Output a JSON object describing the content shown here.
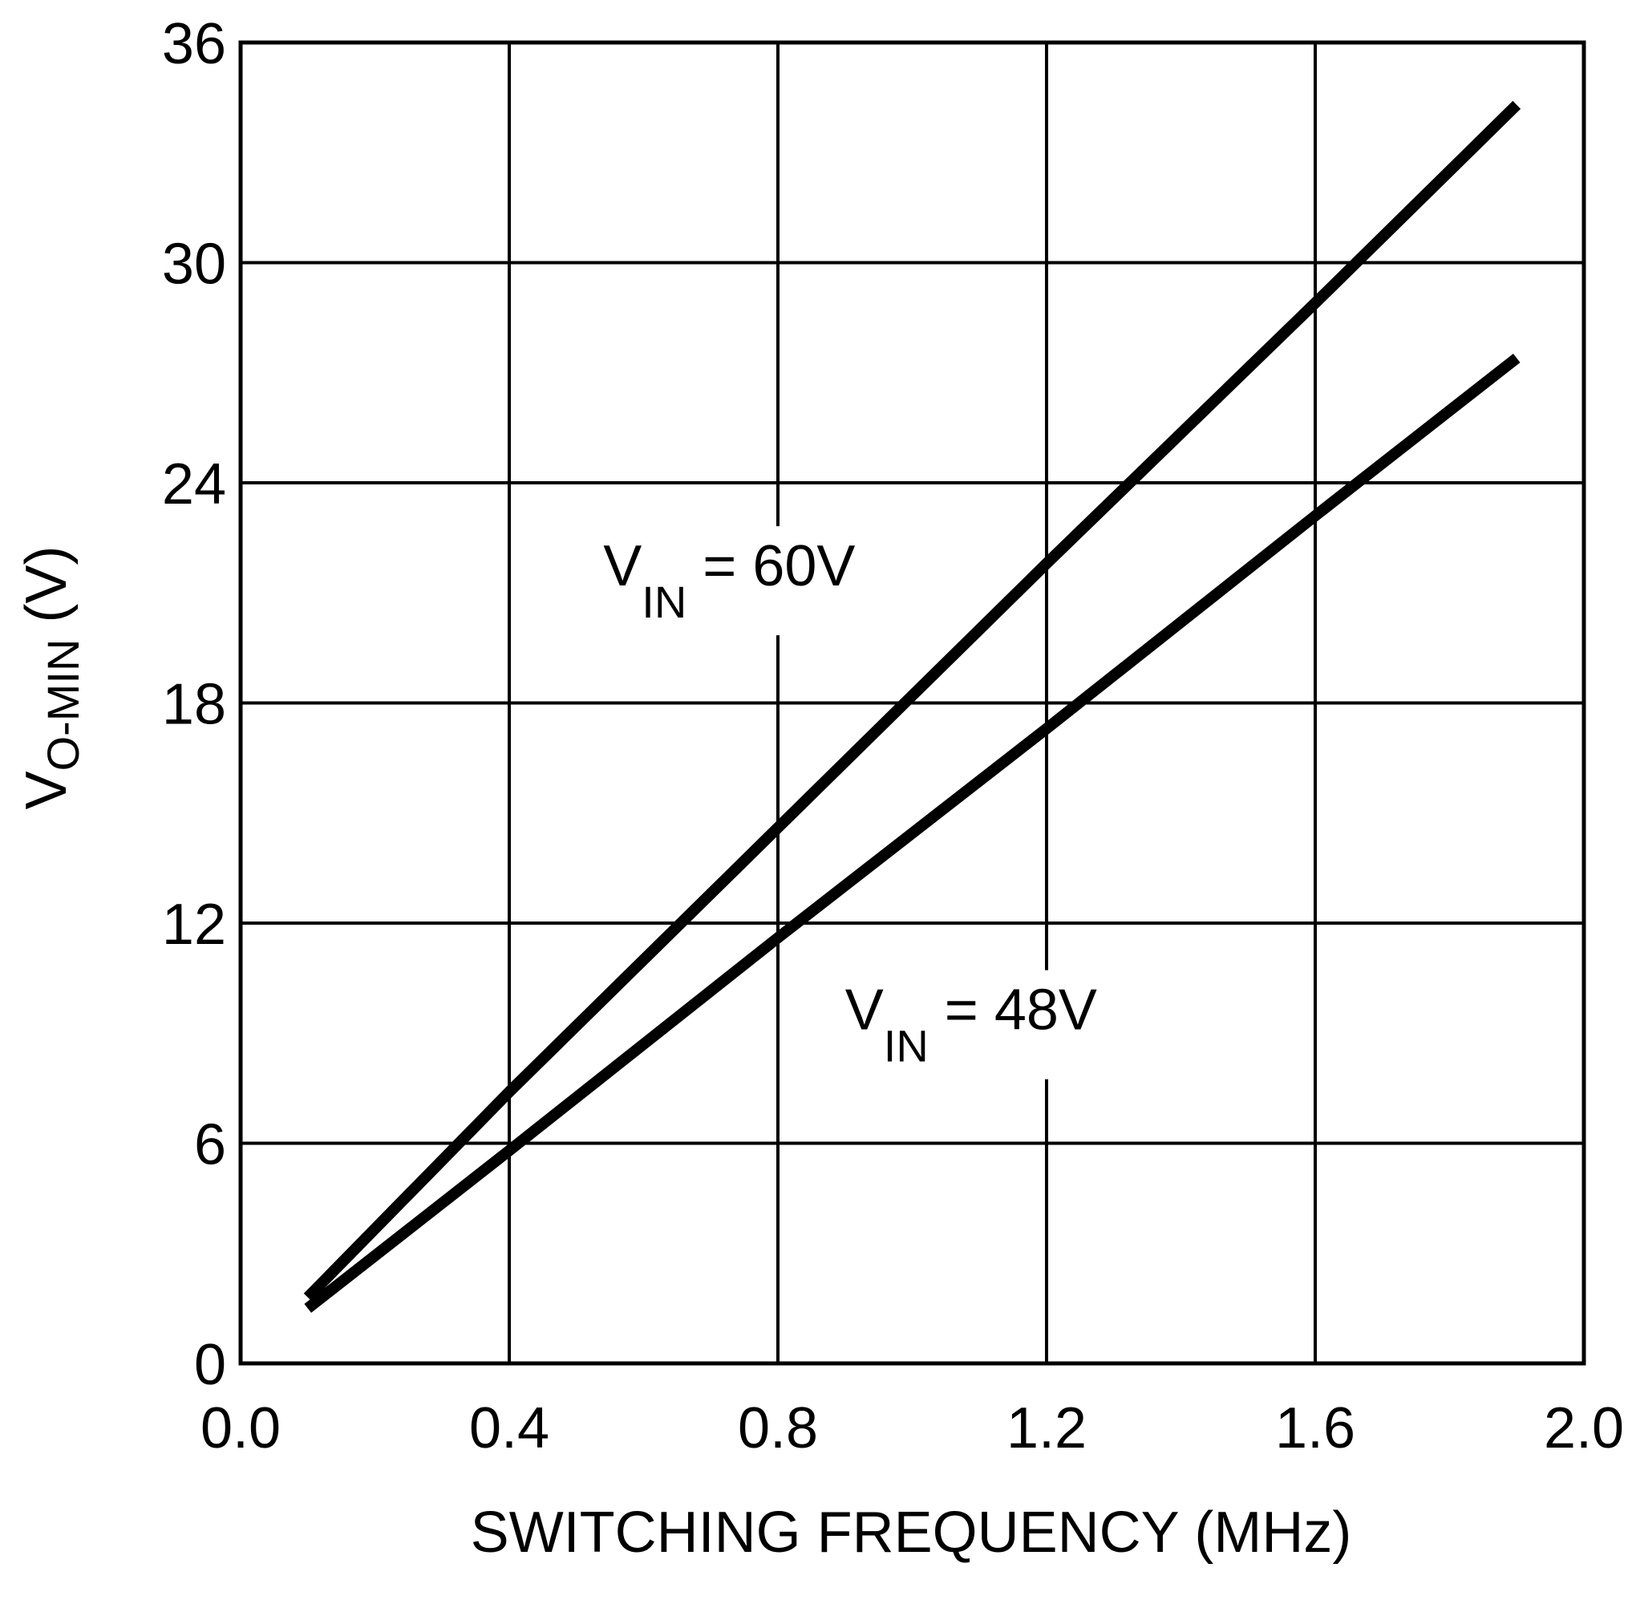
{
  "chart_data": {
    "type": "line",
    "title": "",
    "xlabel": "SWITCHING FREQUENCY  (MHz)",
    "ylabel": {
      "main": "V",
      "subscript": "O-MIN",
      "unit": " (V)"
    },
    "xlim": [
      0.0,
      2.0
    ],
    "ylim": [
      0,
      36
    ],
    "grid": true,
    "x_ticks": [
      0.0,
      0.4,
      0.8,
      1.2,
      1.6,
      2.0
    ],
    "x_tick_labels": [
      "0.0",
      "0.4",
      "0.8",
      "1.2",
      "1.6",
      "2.0"
    ],
    "y_ticks": [
      0,
      6,
      12,
      18,
      24,
      30,
      36
    ],
    "y_tick_labels": [
      "0",
      "6",
      "12",
      "18",
      "24",
      "30",
      "36"
    ],
    "series": [
      {
        "name": "VIN = 60V",
        "color": "#000000",
        "x": [
          0.1,
          0.4,
          0.8,
          1.2,
          1.6,
          1.9
        ],
        "y": [
          1.8,
          7.4,
          14.6,
          21.8,
          28.9,
          34.3
        ]
      },
      {
        "name": "VIN = 48V",
        "color": "#000000",
        "x": [
          0.1,
          0.4,
          0.8,
          1.2,
          1.6,
          1.9
        ],
        "y": [
          1.5,
          5.8,
          11.6,
          17.3,
          23.1,
          27.4
        ]
      }
    ],
    "annotations": [
      {
        "series_index": 0,
        "main": "V",
        "subscript": "IN",
        "rest": " = 60V",
        "at_x": 0.54,
        "at_y": 21.2
      },
      {
        "series_index": 1,
        "main": "V",
        "subscript": "IN",
        "rest": " = 48V",
        "at_x": 0.9,
        "at_y": 9.1
      }
    ]
  }
}
